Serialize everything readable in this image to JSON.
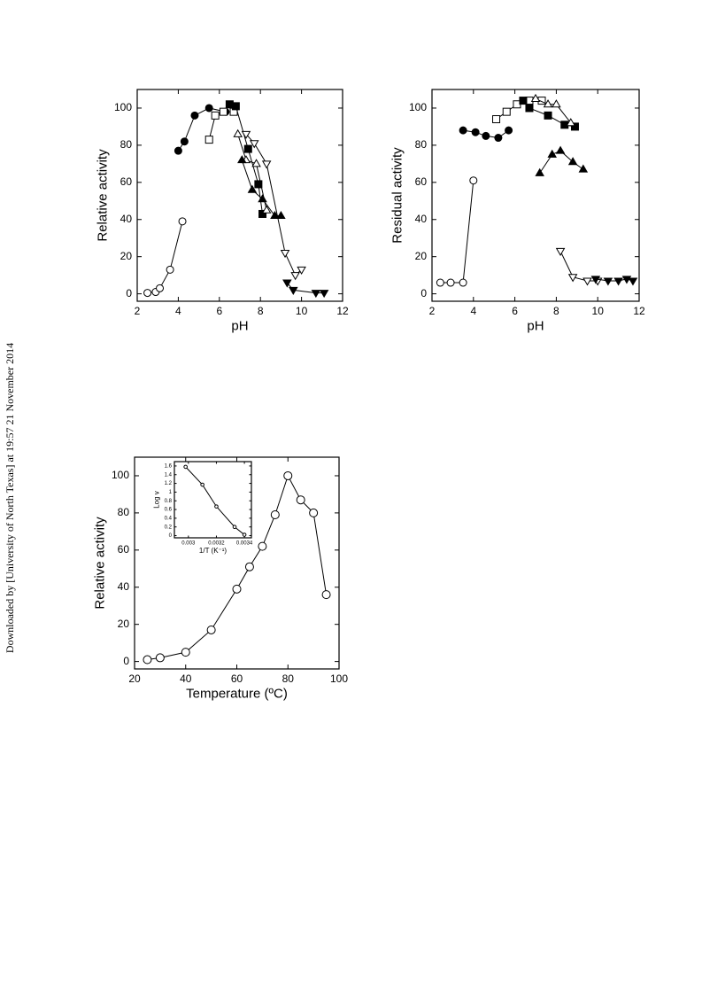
{
  "watermark": "Downloaded by [University of North Texas] at 19:57 21 November 2014",
  "chart_data": [
    {
      "type": "line",
      "xlabel": "pH",
      "ylabel": "Relative activity",
      "xlim": [
        2,
        12
      ],
      "ylim": [
        -4,
        110
      ],
      "xticks": [
        2,
        4,
        6,
        8,
        10,
        12
      ],
      "yticks": [
        0,
        20,
        40,
        60,
        80,
        100
      ],
      "series": [
        {
          "marker": "circle",
          "filled": false,
          "color": "#000000",
          "x": [
            2.5,
            2.9,
            3.1,
            3.6,
            4.2
          ],
          "values": [
            0.5,
            1,
            3,
            13,
            39
          ]
        },
        {
          "marker": "circle",
          "filled": true,
          "color": "#000000",
          "x": [
            4.0,
            4.3,
            4.8,
            5.5,
            6.3
          ],
          "values": [
            77,
            82,
            96,
            100,
            98
          ]
        },
        {
          "marker": "square",
          "filled": false,
          "color": "#000000",
          "x": [
            5.5,
            5.8,
            6.2,
            6.7
          ],
          "values": [
            83,
            96,
            98,
            98
          ]
        },
        {
          "marker": "square",
          "filled": true,
          "color": "#000000",
          "x": [
            6.5,
            6.8,
            7.4,
            7.9,
            8.1
          ],
          "values": [
            102,
            101,
            78,
            59,
            43
          ]
        },
        {
          "marker": "triangle-up",
          "filled": false,
          "color": "#000000",
          "x": [
            6.9,
            7.3,
            7.8,
            8.3
          ],
          "values": [
            86,
            72,
            70,
            45
          ]
        },
        {
          "marker": "triangle-up",
          "filled": true,
          "color": "#000000",
          "x": [
            7.1,
            7.6,
            8.1,
            8.7,
            9.0
          ],
          "values": [
            72,
            56,
            51,
            42,
            42
          ]
        },
        {
          "marker": "triangle-down",
          "filled": false,
          "color": "#000000",
          "x": [
            7.3,
            7.7,
            8.3,
            9.2,
            9.7,
            10.0
          ],
          "values": [
            86,
            81,
            70,
            22,
            10,
            13
          ]
        },
        {
          "marker": "triangle-down",
          "filled": true,
          "color": "#000000",
          "x": [
            9.3,
            9.6,
            10.7,
            11.1
          ],
          "values": [
            6,
            2,
            0.5,
            0.5
          ]
        }
      ]
    },
    {
      "type": "line",
      "xlabel": "pH",
      "ylabel": "Residual activity",
      "xlim": [
        2,
        12
      ],
      "ylim": [
        -4,
        110
      ],
      "xticks": [
        2,
        4,
        6,
        8,
        10,
        12
      ],
      "yticks": [
        0,
        20,
        40,
        60,
        80,
        100
      ],
      "series": [
        {
          "marker": "circle",
          "filled": false,
          "color": "#000000",
          "x": [
            2.4,
            2.9,
            3.5,
            4.0
          ],
          "values": [
            6,
            6,
            6,
            61
          ]
        },
        {
          "marker": "circle",
          "filled": true,
          "color": "#000000",
          "x": [
            3.5,
            4.1,
            4.6,
            5.2,
            5.7
          ],
          "values": [
            88,
            87,
            85,
            84,
            88
          ]
        },
        {
          "marker": "square",
          "filled": false,
          "color": "#000000",
          "x": [
            5.1,
            5.6,
            6.1,
            6.7,
            7.3
          ],
          "values": [
            94,
            98,
            102,
            104,
            104
          ]
        },
        {
          "marker": "square",
          "filled": true,
          "color": "#000000",
          "x": [
            6.4,
            6.7,
            7.6,
            8.4,
            8.9
          ],
          "values": [
            104,
            100,
            96,
            91,
            90
          ]
        },
        {
          "marker": "triangle-up",
          "filled": false,
          "color": "#000000",
          "x": [
            7.0,
            7.6,
            8.0,
            8.7
          ],
          "values": [
            105,
            102,
            102,
            92
          ]
        },
        {
          "marker": "triangle-up",
          "filled": true,
          "color": "#000000",
          "x": [
            7.2,
            7.8,
            8.2,
            8.8,
            9.3
          ],
          "values": [
            65,
            75,
            77,
            71,
            67
          ]
        },
        {
          "marker": "triangle-down",
          "filled": false,
          "color": "#000000",
          "x": [
            8.2,
            8.8,
            9.5,
            10.0
          ],
          "values": [
            23,
            9,
            7,
            7
          ]
        },
        {
          "marker": "triangle-down",
          "filled": true,
          "color": "#000000",
          "x": [
            9.9,
            10.5,
            11.0,
            11.4,
            11.7
          ],
          "values": [
            8,
            7,
            7,
            8,
            7
          ]
        }
      ]
    },
    {
      "type": "line",
      "xlabel": "Temperature (ºC)",
      "ylabel": "Relative activity",
      "xlim": [
        20,
        100
      ],
      "ylim": [
        -4,
        110
      ],
      "xticks": [
        20,
        40,
        60,
        80,
        100
      ],
      "yticks": [
        0,
        20,
        40,
        60,
        80,
        100
      ],
      "series": [
        {
          "marker": "circle",
          "filled": false,
          "color": "#000000",
          "x": [
            25,
            30,
            40,
            50,
            60,
            65,
            70,
            75,
            80,
            85,
            90,
            95
          ],
          "values": [
            1,
            2,
            5,
            17,
            39,
            51,
            62,
            79,
            100,
            87,
            80,
            36
          ]
        }
      ]
    },
    {
      "type": "line",
      "xlabel": "1/T (K⁻¹)",
      "ylabel": "Log v",
      "xlim": [
        0.0029,
        0.00345
      ],
      "ylim": [
        -0.05,
        1.7
      ],
      "xticks": [
        0.003,
        0.0032,
        0.0034
      ],
      "yticks": [
        0,
        0.2,
        0.4,
        0.6,
        0.8,
        1,
        1.2,
        1.4,
        1.6
      ],
      "series": [
        {
          "marker": "circle",
          "filled": false,
          "color": "#000000",
          "x": [
            0.00298,
            0.0031,
            0.0032,
            0.00333,
            0.0034
          ],
          "values": [
            1.58,
            1.17,
            0.67,
            0.2,
            0.02
          ]
        }
      ]
    }
  ]
}
